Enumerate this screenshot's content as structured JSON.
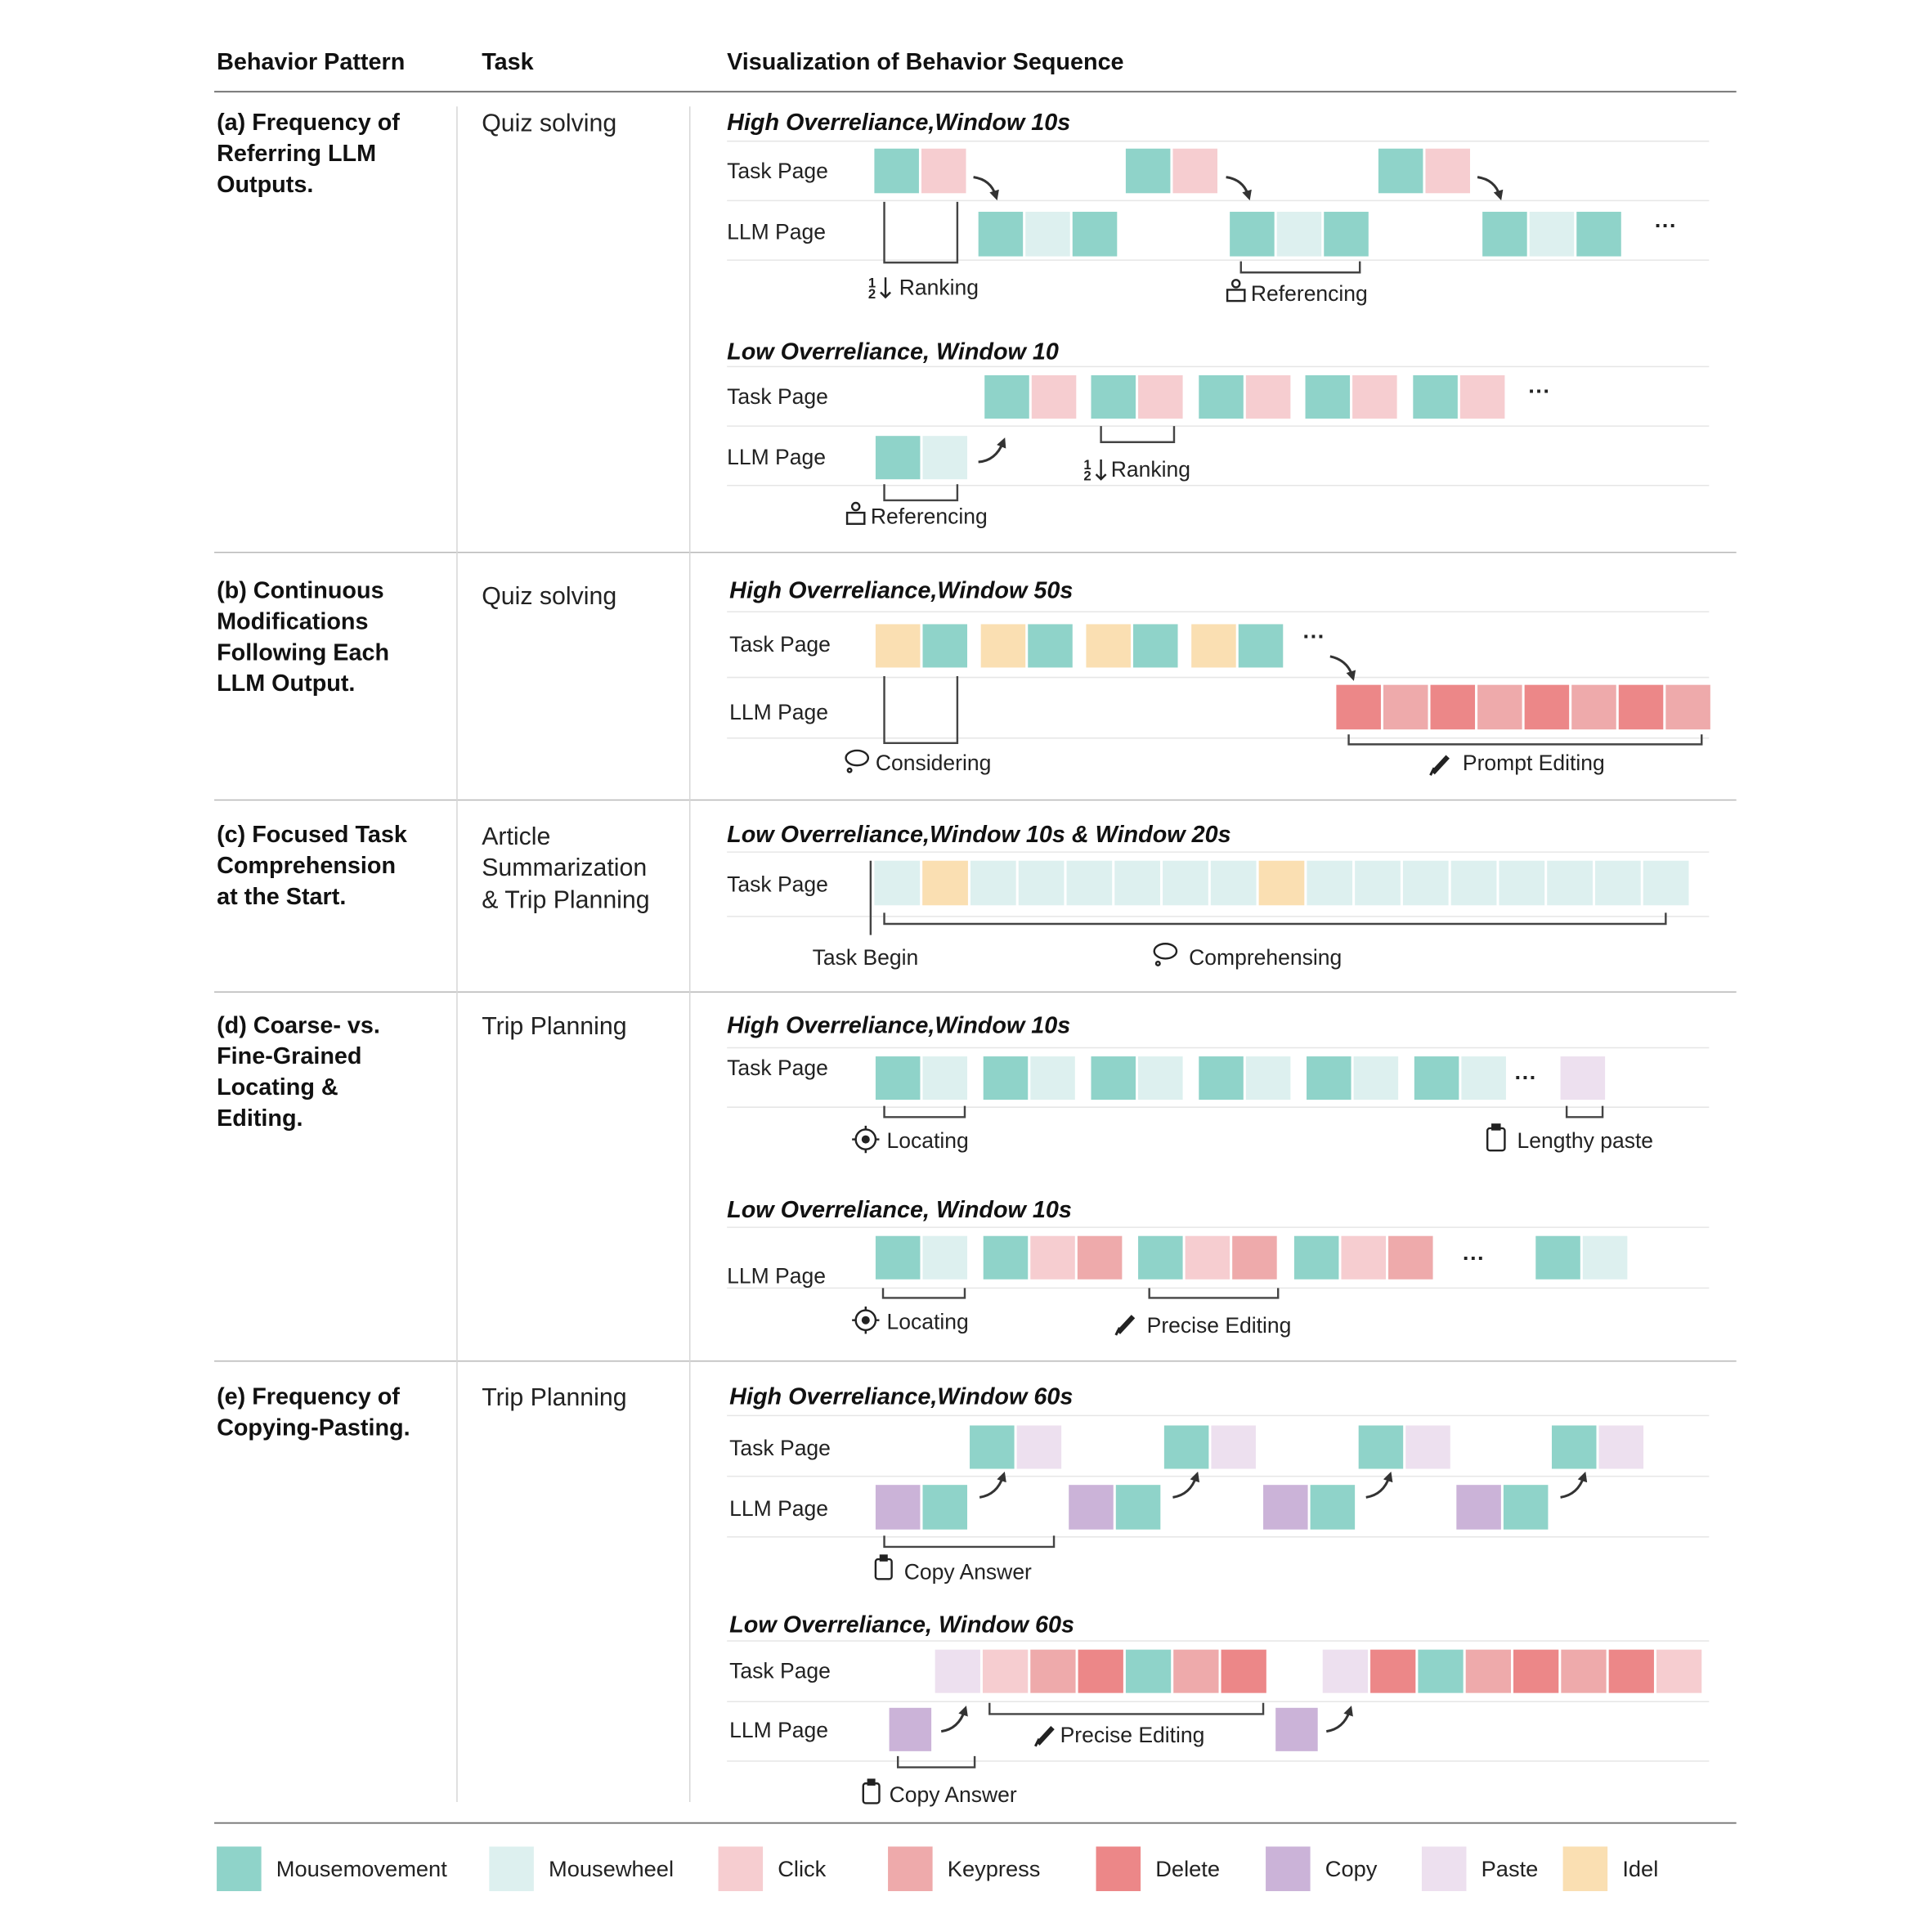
{
  "header": {
    "col1": "Behavior Pattern",
    "col2": "Task",
    "col3": "Visualization of Behavior Sequence"
  },
  "colors": {
    "mousemovement": "#8fd3c9",
    "mousewheel": "#ddf0ef",
    "click": "#f6cdd0",
    "keypress": "#eeaaab",
    "delete": "#ec8788",
    "copy": "#cbb3d8",
    "paste": "#ede0ef",
    "idle": "#fadfb2"
  },
  "legend": [
    {
      "key": "mousemovement",
      "label": "Mousemovement"
    },
    {
      "key": "mousewheel",
      "label": "Mousewheel"
    },
    {
      "key": "click",
      "label": "Click"
    },
    {
      "key": "keypress",
      "label": "Keypress"
    },
    {
      "key": "delete",
      "label": "Delete"
    },
    {
      "key": "copy",
      "label": "Copy"
    },
    {
      "key": "paste",
      "label": "Paste"
    },
    {
      "key": "idle",
      "label": "Idel"
    }
  ],
  "rows": [
    {
      "pattern": [
        "(a) Frequency of",
        "Referring LLM",
        "Outputs."
      ],
      "task": [
        "Quiz solving"
      ],
      "blocks": [
        {
          "title": "High Overreliance,Window 10s",
          "row_labels": [
            "Task Page",
            "LLM Page"
          ],
          "annotations": [
            "Ranking",
            "Referencing"
          ],
          "sequences": [
            [
              "mousemovement",
              "click"
            ],
            [
              "mousemovement",
              "click"
            ],
            [
              "mousemovement",
              "click"
            ],
            [
              "mousemovement",
              "mousewheel",
              "mousemovement"
            ],
            [
              "mousemovement",
              "mousewheel",
              "mousemovement"
            ],
            [
              "mousemovement",
              "mousewheel",
              "mousemovement"
            ]
          ],
          "ellipsis": "···"
        },
        {
          "title": "Low Overreliance, Window 10",
          "row_labels": [
            "Task Page",
            "LLM Page"
          ],
          "annotations": [
            "Ranking",
            "Referencing"
          ],
          "sequences": [
            [
              "mousemovement",
              "click"
            ],
            [
              "mousemovement",
              "click"
            ],
            [
              "mousemovement",
              "click"
            ],
            [
              "mousemovement",
              "click"
            ],
            [
              "mousemovement",
              "click"
            ],
            [
              "mousemovement",
              "mousewheel"
            ]
          ],
          "ellipsis": "···"
        }
      ]
    },
    {
      "pattern": [
        "(b) Continuous",
        "Modifications",
        "Following Each",
        "LLM Output."
      ],
      "task": [
        "Quiz solving"
      ],
      "blocks": [
        {
          "title": "High Overreliance,Window 50s",
          "row_labels": [
            "Task Page",
            "LLM Page"
          ],
          "annotations": [
            "Considering",
            "Prompt Editing"
          ],
          "sequences": [
            [
              "idle",
              "mousemovement"
            ],
            [
              "idle",
              "mousemovement"
            ],
            [
              "idle",
              "mousemovement"
            ],
            [
              "idle",
              "mousemovement"
            ],
            [
              "delete",
              "keypress",
              "delete",
              "keypress",
              "delete",
              "keypress",
              "delete",
              "keypress"
            ]
          ],
          "ellipsis": "···"
        }
      ]
    },
    {
      "pattern": [
        "(c) Focused Task",
        "Comprehension",
        "at the Start."
      ],
      "task": [
        "Article",
        "Summarization",
        "& Trip Planning"
      ],
      "blocks": [
        {
          "title": "Low Overreliance,Window 10s & Window 20s",
          "row_labels": [
            "Task Page"
          ],
          "annotations": [
            "Task Begin",
            "Comprehensing"
          ],
          "sequences": [
            [
              "mousewheel",
              "idle",
              "mousewheel",
              "mousewheel",
              "mousewheel",
              "mousewheel",
              "mousewheel",
              "mousewheel",
              "idle",
              "mousewheel",
              "mousewheel",
              "mousewheel",
              "mousewheel",
              "mousewheel",
              "mousewheel",
              "mousewheel",
              "mousewheel"
            ]
          ]
        }
      ]
    },
    {
      "pattern": [
        "(d) Coarse- vs.",
        "Fine-Grained",
        "Locating &",
        "Editing."
      ],
      "task": [
        "Trip Planning"
      ],
      "blocks": [
        {
          "title": "High Overreliance,Window 10s",
          "row_labels": [
            "Task Page"
          ],
          "annotations": [
            "Locating",
            "Lengthy paste"
          ],
          "sequences": [
            [
              "mousemovement",
              "mousewheel"
            ],
            [
              "mousemovement",
              "mousewheel"
            ],
            [
              "mousemovement",
              "mousewheel"
            ],
            [
              "mousemovement",
              "mousewheel"
            ],
            [
              "mousemovement",
              "mousewheel"
            ],
            [
              "mousemovement",
              "mousewheel"
            ],
            [
              "paste"
            ]
          ],
          "ellipsis": "···"
        },
        {
          "title": "Low Overreliance, Window 10s",
          "row_labels": [
            "LLM Page"
          ],
          "annotations": [
            "Locating",
            "Precise Editing"
          ],
          "sequences": [
            [
              "mousemovement",
              "mousewheel"
            ],
            [
              "mousemovement",
              "click",
              "keypress"
            ],
            [
              "mousemovement",
              "click",
              "keypress"
            ],
            [
              "mousemovement",
              "click",
              "keypress"
            ],
            [
              "mousemovement",
              "mousewheel"
            ]
          ],
          "ellipsis": "···"
        }
      ]
    },
    {
      "pattern": [
        "(e) Frequency of",
        "Copying-Pasting."
      ],
      "task": [
        "Trip Planning"
      ],
      "blocks": [
        {
          "title": "High Overreliance,Window 60s",
          "row_labels": [
            "Task Page",
            "LLM Page"
          ],
          "annotations": [
            "Copy Answer"
          ],
          "sequences": [
            [
              "mousemovement",
              "paste"
            ],
            [
              "mousemovement",
              "paste"
            ],
            [
              "mousemovement",
              "paste"
            ],
            [
              "mousemovement",
              "paste"
            ],
            [
              "copy",
              "mousemovement"
            ],
            [
              "copy",
              "mousemovement"
            ],
            [
              "copy",
              "mousemovement"
            ],
            [
              "copy",
              "mousemovement"
            ]
          ]
        },
        {
          "title": "Low Overreliance, Window 60s",
          "row_labels": [
            "Task Page",
            "LLM Page"
          ],
          "annotations": [
            "Precise Editing",
            "Copy Answer"
          ],
          "sequences": [
            [
              "paste",
              "click",
              "keypress",
              "delete",
              "mousemovement",
              "keypress",
              "delete"
            ],
            [
              "paste",
              "delete",
              "mousemovement",
              "keypress",
              "delete",
              "keypress",
              "delete",
              "click"
            ],
            [
              "copy"
            ],
            [
              "copy"
            ]
          ]
        }
      ]
    }
  ]
}
